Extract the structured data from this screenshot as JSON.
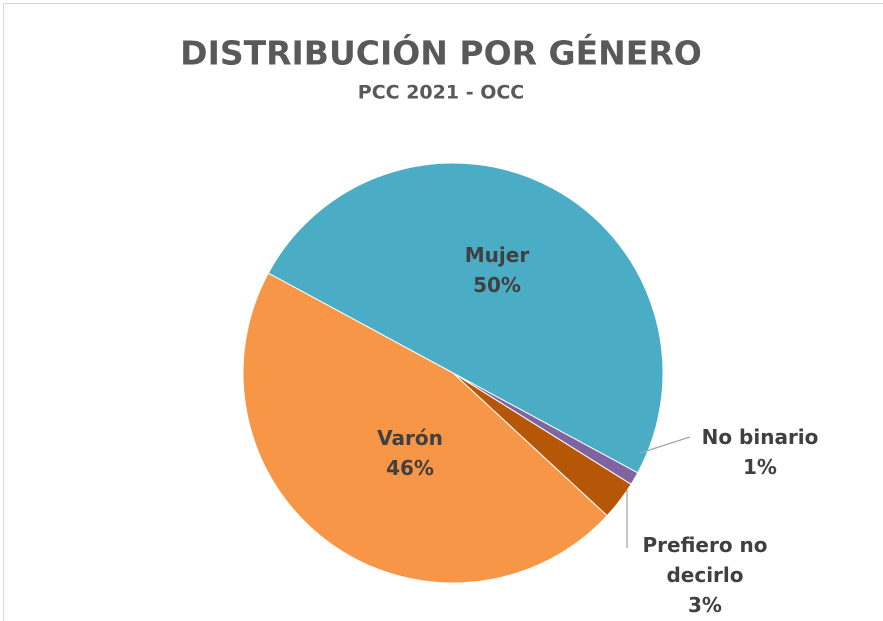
{
  "chart_data": {
    "type": "pie",
    "title": "DISTRIBUCIÓN POR GÉNERO",
    "subtitle": "PCC 2021 - OCC",
    "categories": [
      "Mujer",
      "No binario",
      "Prefiero no decirlo",
      "Varón"
    ],
    "values": [
      50,
      1,
      3,
      46
    ],
    "value_labels": [
      "50%",
      "1%",
      "3%",
      "46%"
    ],
    "colors": [
      "#4bacc6",
      "#8064a2",
      "#b65708",
      "#f79646"
    ]
  }
}
